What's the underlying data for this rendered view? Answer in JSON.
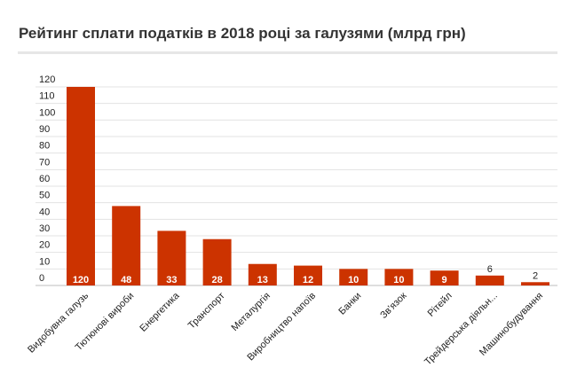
{
  "chart_data": {
    "type": "bar",
    "title": "Рейтинг сплати податків в 2018 році за галузями (млрд грн)",
    "xlabel": "",
    "ylabel": "",
    "ylim": [
      0,
      120
    ],
    "y_ticks": [
      "0",
      "10",
      "20",
      "30",
      "40",
      "50",
      "60",
      "70",
      "80",
      "90",
      "100",
      "110",
      "120"
    ],
    "grid": true,
    "legend": "none",
    "bar_color": "#cc3300",
    "categories": [
      "Видобувна галузь",
      "Тютюнові вироби",
      "Енергетика",
      "Транспорт",
      "Металургія",
      "Виробництво напоїв",
      "Банки",
      "Зв'язок",
      "Рітейл",
      "Трейдерська діяльн...",
      "Машинобудування"
    ],
    "values": [
      120,
      48,
      33,
      28,
      13,
      12,
      10,
      10,
      9,
      6,
      2
    ],
    "data_labels": [
      "120",
      "48",
      "33",
      "28",
      "13",
      "12",
      "10",
      "10",
      "9",
      "6",
      "2"
    ]
  }
}
